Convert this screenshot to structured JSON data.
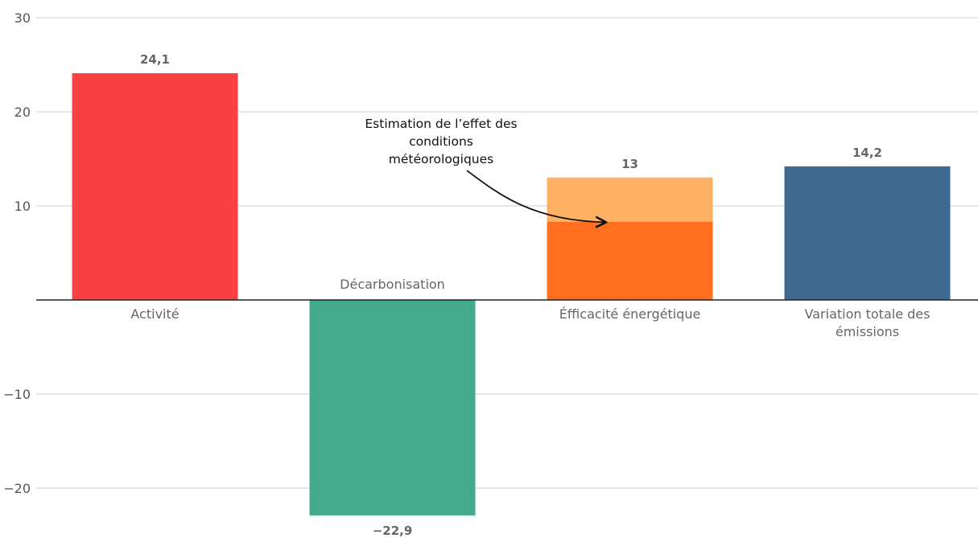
{
  "chart_data": {
    "type": "bar",
    "categories": [
      "Activité",
      "Décarbonisation",
      "Éfficacité énergétique",
      "Variation totale des émissions"
    ],
    "category_label_lines": [
      [
        "Activité"
      ],
      [
        "Décarbonisation"
      ],
      [
        "Éfficacité énergétique"
      ],
      [
        "Variation totale des",
        "émissions"
      ]
    ],
    "values": [
      24.1,
      -22.9,
      13,
      14.2
    ],
    "value_labels": [
      "24,1",
      "−22,9",
      "13",
      "14,2"
    ],
    "weather_effect_segment": {
      "category": "Éfficacité énergétique",
      "from": 8.3,
      "to": 13
    },
    "colors": {
      "Activité": "#f94144",
      "Décarbonisation": "#43aa8b",
      "Éfficacité énergétique": "#ff6f1f",
      "weather_effect": "#ffb163",
      "Variation totale des émissions": "#3e6990"
    },
    "ylim": [
      -25,
      30
    ],
    "yticks": [
      30,
      20,
      10,
      -10,
      -20
    ],
    "ytick_labels": [
      "30",
      "20",
      "10",
      "−10",
      "−20"
    ],
    "annotation": {
      "lines": [
        "Estimation de l’effet des",
        "conditions",
        "météorologiques"
      ],
      "points_to": {
        "category": "Éfficacité énergétique",
        "value": 8.6
      }
    },
    "grid": true,
    "legend": "none",
    "title": "",
    "xlabel": "",
    "ylabel": ""
  }
}
